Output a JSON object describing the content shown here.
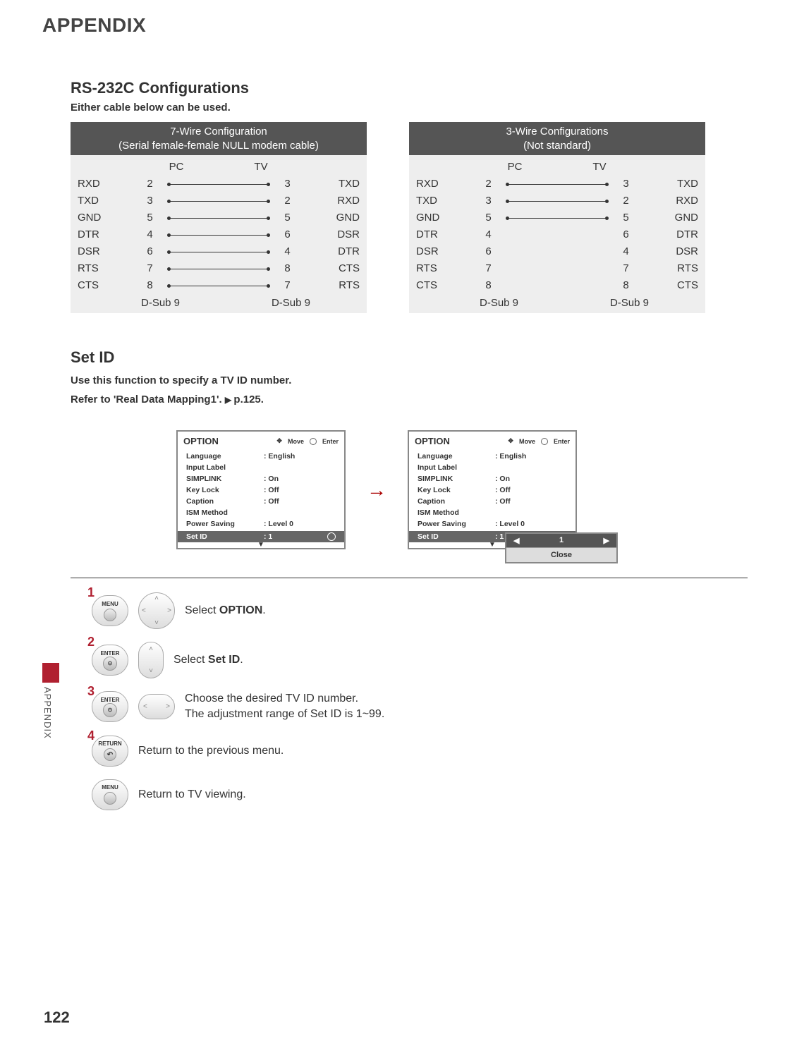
{
  "header": {
    "title": "APPENDIX"
  },
  "rs232": {
    "title": "RS-232C Configurations",
    "subtitle": "Either cable below can be used.",
    "pc_label": "PC",
    "tv_label": "TV",
    "dsub_label": "D-Sub 9",
    "left": {
      "title_line1": "7-Wire Configuration",
      "title_line2": "(Serial female-female NULL modem cable)",
      "rows": [
        {
          "ll": "RXD",
          "lp": "2",
          "rp": "3",
          "rl": "TXD",
          "wired": true
        },
        {
          "ll": "TXD",
          "lp": "3",
          "rp": "2",
          "rl": "RXD",
          "wired": true
        },
        {
          "ll": "GND",
          "lp": "5",
          "rp": "5",
          "rl": "GND",
          "wired": true
        },
        {
          "ll": "DTR",
          "lp": "4",
          "rp": "6",
          "rl": "DSR",
          "wired": true
        },
        {
          "ll": "DSR",
          "lp": "6",
          "rp": "4",
          "rl": "DTR",
          "wired": true
        },
        {
          "ll": "RTS",
          "lp": "7",
          "rp": "8",
          "rl": "CTS",
          "wired": true
        },
        {
          "ll": "CTS",
          "lp": "8",
          "rp": "7",
          "rl": "RTS",
          "wired": true
        }
      ]
    },
    "right": {
      "title_line1": "3-Wire Configurations",
      "title_line2": "(Not standard)",
      "rows": [
        {
          "ll": "RXD",
          "lp": "2",
          "rp": "3",
          "rl": "TXD",
          "wired": true
        },
        {
          "ll": "TXD",
          "lp": "3",
          "rp": "2",
          "rl": "RXD",
          "wired": true
        },
        {
          "ll": "GND",
          "lp": "5",
          "rp": "5",
          "rl": "GND",
          "wired": true
        },
        {
          "ll": "DTR",
          "lp": "4",
          "rp": "6",
          "rl": "DTR",
          "wired": false
        },
        {
          "ll": "DSR",
          "lp": "6",
          "rp": "4",
          "rl": "DSR",
          "wired": false
        },
        {
          "ll": "RTS",
          "lp": "7",
          "rp": "7",
          "rl": "RTS",
          "wired": false
        },
        {
          "ll": "CTS",
          "lp": "8",
          "rp": "8",
          "rl": "CTS",
          "wired": false
        }
      ]
    }
  },
  "setid": {
    "title": "Set ID",
    "line1": "Use this function to specify a TV ID number.",
    "line2_pre": "Refer to 'Real Data Mapping1'. ",
    "line2_ref": "p.125",
    "osd": {
      "title": "OPTION",
      "move": "Move",
      "enter": "Enter",
      "items": [
        {
          "k": "Language",
          "v": ": English"
        },
        {
          "k": "Input Label",
          "v": ""
        },
        {
          "k": "SIMPLINK",
          "v": ": On"
        },
        {
          "k": "Key Lock",
          "v": ": Off"
        },
        {
          "k": "Caption",
          "v": ": Off"
        },
        {
          "k": "ISM Method",
          "v": ""
        },
        {
          "k": "Power Saving",
          "v": ": Level 0"
        }
      ],
      "setid_label": "Set ID",
      "setid_value": ": 1",
      "popup_value": "1",
      "popup_close": "Close"
    }
  },
  "sidetab": "APPENDIX",
  "steps": {
    "s1": {
      "num": "1",
      "btn": "MENU",
      "text_pre": "Select ",
      "bold": "OPTION",
      "text_post": "."
    },
    "s2": {
      "num": "2",
      "btn": "ENTER",
      "text_pre": "Select ",
      "bold": "Set ID",
      "text_post": "."
    },
    "s3": {
      "num": "3",
      "btn": "ENTER",
      "text1": "Choose the desired TV ID number.",
      "text2": "The adjustment range of Set ID is 1~99."
    },
    "s4": {
      "num": "4",
      "btn": "RETURN",
      "text": "Return to the previous menu."
    },
    "s5": {
      "btn": "MENU",
      "text": "Return to TV viewing."
    }
  },
  "pagenum": "122",
  "colors": {
    "accent": "#b02030",
    "header_bg": "#555555",
    "body_bg": "#eeeeee"
  }
}
